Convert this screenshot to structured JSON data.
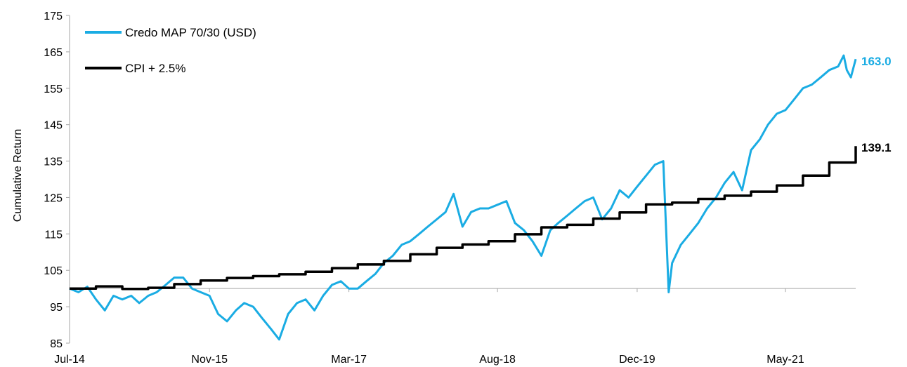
{
  "chart_data": {
    "type": "line",
    "title": "",
    "xlabel": "",
    "ylabel": "Cumulative Return",
    "ylim": [
      85,
      175
    ],
    "yticks": [
      85,
      95,
      105,
      115,
      125,
      135,
      145,
      155,
      165,
      175
    ],
    "xlim": [
      "2014-07",
      "2022-01"
    ],
    "xticks": [
      {
        "date": "2014-07",
        "label": "Jul-14"
      },
      {
        "date": "2015-11",
        "label": "Nov-15"
      },
      {
        "date": "2017-03",
        "label": "Mar-17"
      },
      {
        "date": "2018-08",
        "label": "Aug-18"
      },
      {
        "date": "2019-12",
        "label": "Dec-19"
      },
      {
        "date": "2021-05",
        "label": "May-21"
      }
    ],
    "baseline": 100,
    "grid": false,
    "legend_position": "top-left",
    "series": [
      {
        "name": "Credo MAP 70/30 (USD)",
        "color": "#1AACE3",
        "end_label": "163.0",
        "points": [
          [
            "2014-07-01",
            100
          ],
          [
            "2014-08-01",
            99
          ],
          [
            "2014-09-01",
            100.5
          ],
          [
            "2014-10-01",
            97
          ],
          [
            "2014-11-01",
            94
          ],
          [
            "2014-12-01",
            98
          ],
          [
            "2015-01-01",
            97
          ],
          [
            "2015-02-01",
            98
          ],
          [
            "2015-03-01",
            96
          ],
          [
            "2015-04-01",
            98
          ],
          [
            "2015-05-01",
            99
          ],
          [
            "2015-06-01",
            101
          ],
          [
            "2015-07-01",
            103
          ],
          [
            "2015-08-01",
            103
          ],
          [
            "2015-09-01",
            100
          ],
          [
            "2015-10-01",
            99
          ],
          [
            "2015-11-01",
            98
          ],
          [
            "2015-12-01",
            93
          ],
          [
            "2016-01-01",
            91
          ],
          [
            "2016-02-01",
            94
          ],
          [
            "2016-03-01",
            96
          ],
          [
            "2016-04-01",
            95
          ],
          [
            "2016-05-01",
            92
          ],
          [
            "2016-06-01",
            89
          ],
          [
            "2016-07-01",
            86
          ],
          [
            "2016-08-01",
            93
          ],
          [
            "2016-09-01",
            96
          ],
          [
            "2016-10-01",
            97
          ],
          [
            "2016-11-01",
            94
          ],
          [
            "2016-12-01",
            98
          ],
          [
            "2017-01-01",
            101
          ],
          [
            "2017-02-01",
            102
          ],
          [
            "2017-03-01",
            100
          ],
          [
            "2017-04-01",
            100
          ],
          [
            "2017-05-01",
            102
          ],
          [
            "2017-06-01",
            104
          ],
          [
            "2017-07-01",
            107
          ],
          [
            "2017-08-01",
            109
          ],
          [
            "2017-09-01",
            112
          ],
          [
            "2017-10-01",
            113
          ],
          [
            "2017-11-01",
            115
          ],
          [
            "2017-12-01",
            117
          ],
          [
            "2018-01-01",
            119
          ],
          [
            "2018-02-01",
            121
          ],
          [
            "2018-03-01",
            126
          ],
          [
            "2018-04-01",
            117
          ],
          [
            "2018-05-01",
            121
          ],
          [
            "2018-06-01",
            122
          ],
          [
            "2018-07-01",
            122
          ],
          [
            "2018-08-01",
            123
          ],
          [
            "2018-09-01",
            124
          ],
          [
            "2018-10-01",
            118
          ],
          [
            "2018-11-01",
            116
          ],
          [
            "2018-12-01",
            113
          ],
          [
            "2019-01-01",
            109
          ],
          [
            "2019-02-01",
            116
          ],
          [
            "2019-03-01",
            118
          ],
          [
            "2019-04-01",
            120
          ],
          [
            "2019-05-01",
            122
          ],
          [
            "2019-06-01",
            124
          ],
          [
            "2019-07-01",
            125
          ],
          [
            "2019-08-01",
            119
          ],
          [
            "2019-09-01",
            122
          ],
          [
            "2019-10-01",
            127
          ],
          [
            "2019-11-01",
            125
          ],
          [
            "2019-12-01",
            128
          ],
          [
            "2020-01-01",
            131
          ],
          [
            "2020-02-01",
            134
          ],
          [
            "2020-03-01",
            135
          ],
          [
            "2020-03-20",
            99
          ],
          [
            "2020-04-01",
            107
          ],
          [
            "2020-05-01",
            112
          ],
          [
            "2020-06-01",
            115
          ],
          [
            "2020-07-01",
            118
          ],
          [
            "2020-08-01",
            122
          ],
          [
            "2020-09-01",
            125
          ],
          [
            "2020-10-01",
            129
          ],
          [
            "2020-11-01",
            132
          ],
          [
            "2020-12-01",
            127
          ],
          [
            "2021-01-01",
            138
          ],
          [
            "2021-02-01",
            141
          ],
          [
            "2021-03-01",
            145
          ],
          [
            "2021-04-01",
            148
          ],
          [
            "2021-05-01",
            149
          ],
          [
            "2021-06-01",
            152
          ],
          [
            "2021-07-01",
            155
          ],
          [
            "2021-08-01",
            156
          ],
          [
            "2021-09-01",
            158
          ],
          [
            "2021-10-01",
            160
          ],
          [
            "2021-11-01",
            161
          ],
          [
            "2021-11-20",
            164
          ],
          [
            "2021-12-01",
            160
          ],
          [
            "2021-12-15",
            158
          ],
          [
            "2022-01-01",
            163
          ]
        ]
      },
      {
        "name": "CPI + 2.5%",
        "color": "#000000",
        "end_label": "139.1",
        "points": [
          [
            "2014-07-01",
            100
          ],
          [
            "2014-10-01",
            100.6
          ],
          [
            "2015-01-01",
            99.9
          ],
          [
            "2015-04-01",
            100.2
          ],
          [
            "2015-07-01",
            101.2
          ],
          [
            "2015-10-01",
            102.2
          ],
          [
            "2016-01-01",
            102.9
          ],
          [
            "2016-04-01",
            103.4
          ],
          [
            "2016-07-01",
            103.9
          ],
          [
            "2016-10-01",
            104.6
          ],
          [
            "2017-01-01",
            105.6
          ],
          [
            "2017-04-01",
            106.6
          ],
          [
            "2017-07-01",
            107.6
          ],
          [
            "2017-10-01",
            109.4
          ],
          [
            "2018-01-01",
            111.2
          ],
          [
            "2018-04-01",
            112.1
          ],
          [
            "2018-07-01",
            113.0
          ],
          [
            "2018-10-01",
            114.9
          ],
          [
            "2019-01-01",
            116.8
          ],
          [
            "2019-04-01",
            117.5
          ],
          [
            "2019-07-01",
            119.2
          ],
          [
            "2019-10-01",
            120.9
          ],
          [
            "2020-01-01",
            123.1
          ],
          [
            "2020-04-01",
            123.6
          ],
          [
            "2020-07-01",
            124.6
          ],
          [
            "2020-10-01",
            125.5
          ],
          [
            "2021-01-01",
            126.6
          ],
          [
            "2021-04-01",
            128.3
          ],
          [
            "2021-07-01",
            131.0
          ],
          [
            "2021-10-01",
            134.6
          ],
          [
            "2022-01-01",
            139.1
          ]
        ]
      }
    ]
  }
}
